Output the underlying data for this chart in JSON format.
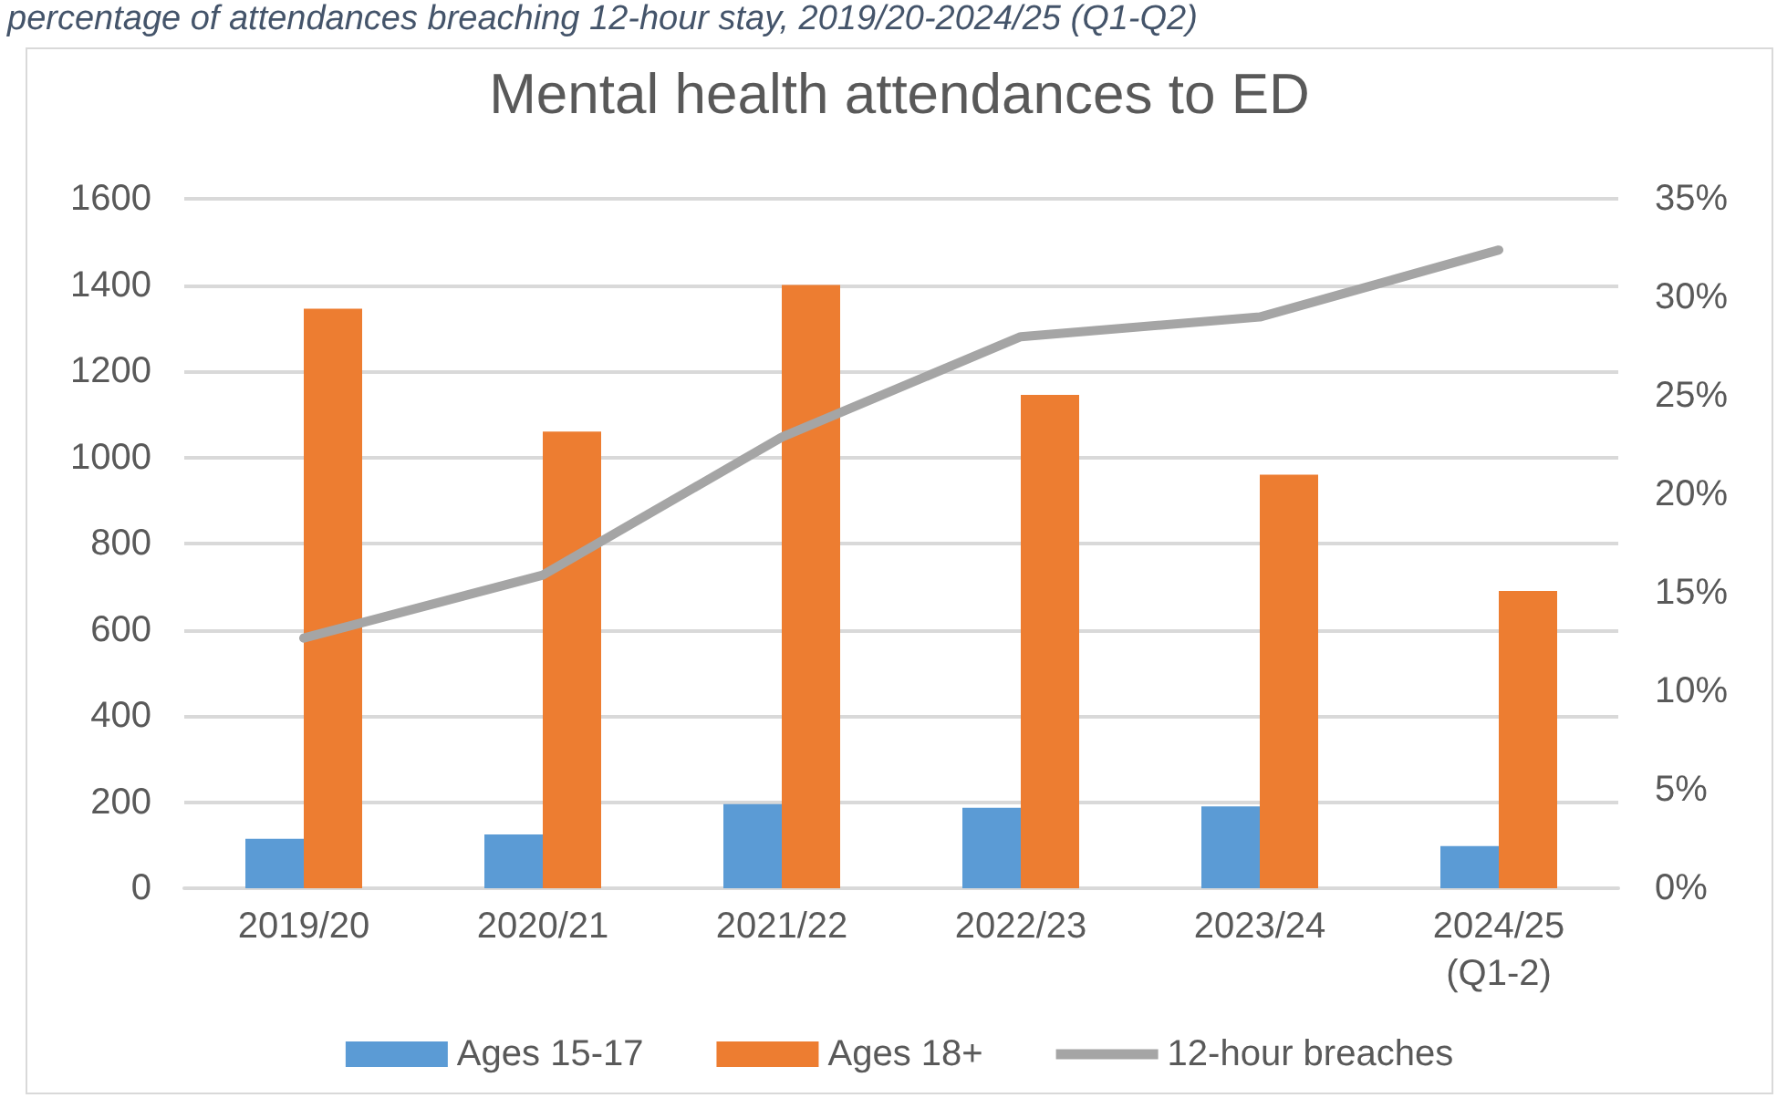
{
  "chart_data": {
    "type": "bar",
    "title": "Mental health attendances to ED",
    "annotations": [
      "percentage of attendances breaching 12-hour stay, 2019/20-2024/25 (Q1-Q2)"
    ],
    "categories": [
      "2019/20",
      "2020/21",
      "2021/22",
      "2022/23",
      "2023/24",
      "2024/25\n(Q1-2)"
    ],
    "series": [
      {
        "name": "Ages 15-17",
        "color": "#5b9bd5",
        "values": [
          115,
          125,
          195,
          187,
          190,
          98
        ]
      },
      {
        "name": "Ages 18+",
        "color": "#ed7d31",
        "values": [
          1345,
          1060,
          1400,
          1145,
          960,
          690
        ]
      },
      {
        "name": "12-hour breaches",
        "type": "line",
        "axis": "y2",
        "color": "#a5a5a5",
        "values": [
          12.7,
          15.9,
          22.9,
          28.0,
          29.0,
          32.4
        ]
      }
    ],
    "ylim": [
      0,
      1600
    ],
    "yticks": [
      0,
      200,
      400,
      600,
      800,
      1000,
      1200,
      1400,
      1600
    ],
    "y2lim": [
      0,
      35
    ],
    "y2ticks": [
      {
        "value": 0,
        "label": "0%"
      },
      {
        "value": 5,
        "label": "5%"
      },
      {
        "value": 10,
        "label": "10%"
      },
      {
        "value": 15,
        "label": "15%"
      },
      {
        "value": 20,
        "label": "20%"
      },
      {
        "value": 25,
        "label": "25%"
      },
      {
        "value": 30,
        "label": "30%"
      },
      {
        "value": 35,
        "label": "35%"
      }
    ],
    "grid": "y",
    "legend": "bottom",
    "marker": "none"
  }
}
